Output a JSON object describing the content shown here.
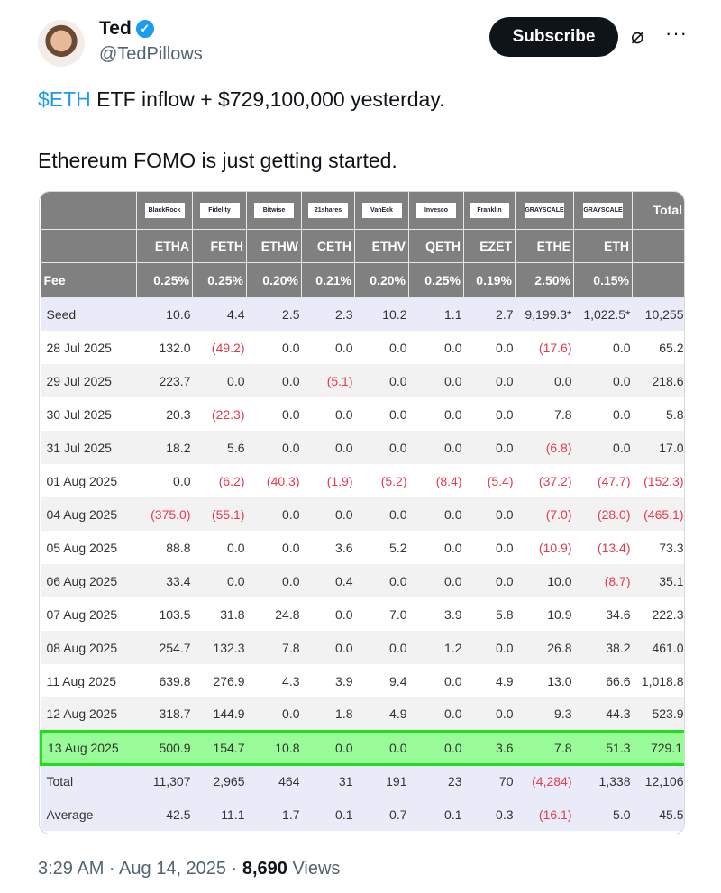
{
  "author": {
    "name": "Ted",
    "handle": "@TedPillows",
    "verified": true
  },
  "actions": {
    "subscribe": "Subscribe",
    "grok_icon": "grok-icon",
    "more_icon": "more-icon"
  },
  "tweet": {
    "cashtag": "$ETH",
    "line1_rest": " ETF inflow + $729,100,000 yesterday.",
    "line2": "Ethereum FOMO is just getting started."
  },
  "table": {
    "issuers": [
      "BlackRock",
      "Fidelity",
      "Bitwise",
      "21shares",
      "VanEck",
      "Invesco",
      "Franklin Templeton",
      "GRAYSCALE",
      "GRAYSCALE"
    ],
    "total_label": "Total",
    "tickers": [
      "ETHA",
      "FETH",
      "ETHW",
      "CETH",
      "ETHV",
      "QETH",
      "EZET",
      "ETHE",
      "ETH"
    ],
    "fee_label": "Fee",
    "fees": [
      "0.25%",
      "0.25%",
      "0.20%",
      "0.21%",
      "0.20%",
      "0.25%",
      "0.19%",
      "2.50%",
      "0.15%"
    ],
    "rows": [
      {
        "label": "Seed",
        "values": [
          "10.6",
          "4.4",
          "2.5",
          "2.3",
          "10.2",
          "1.1",
          "2.7",
          "9,199.3*",
          "1,022.5*",
          "10,255"
        ]
      },
      {
        "label": "28 Jul 2025",
        "values": [
          "132.0",
          "(49.2)",
          "0.0",
          "0.0",
          "0.0",
          "0.0",
          "0.0",
          "(17.6)",
          "0.0",
          "65.2"
        ]
      },
      {
        "label": "29 Jul 2025",
        "values": [
          "223.7",
          "0.0",
          "0.0",
          "(5.1)",
          "0.0",
          "0.0",
          "0.0",
          "0.0",
          "0.0",
          "218.6"
        ]
      },
      {
        "label": "30 Jul 2025",
        "values": [
          "20.3",
          "(22.3)",
          "0.0",
          "0.0",
          "0.0",
          "0.0",
          "0.0",
          "7.8",
          "0.0",
          "5.8"
        ]
      },
      {
        "label": "31 Jul 2025",
        "values": [
          "18.2",
          "5.6",
          "0.0",
          "0.0",
          "0.0",
          "0.0",
          "0.0",
          "(6.8)",
          "0.0",
          "17.0"
        ]
      },
      {
        "label": "01 Aug 2025",
        "values": [
          "0.0",
          "(6.2)",
          "(40.3)",
          "(1.9)",
          "(5.2)",
          "(8.4)",
          "(5.4)",
          "(37.2)",
          "(47.7)",
          "(152.3)"
        ]
      },
      {
        "label": "04 Aug 2025",
        "values": [
          "(375.0)",
          "(55.1)",
          "0.0",
          "0.0",
          "0.0",
          "0.0",
          "0.0",
          "(7.0)",
          "(28.0)",
          "(465.1)"
        ]
      },
      {
        "label": "05 Aug 2025",
        "values": [
          "88.8",
          "0.0",
          "0.0",
          "3.6",
          "5.2",
          "0.0",
          "0.0",
          "(10.9)",
          "(13.4)",
          "73.3"
        ]
      },
      {
        "label": "06 Aug 2025",
        "values": [
          "33.4",
          "0.0",
          "0.0",
          "0.4",
          "0.0",
          "0.0",
          "0.0",
          "10.0",
          "(8.7)",
          "35.1"
        ]
      },
      {
        "label": "07 Aug 2025",
        "values": [
          "103.5",
          "31.8",
          "24.8",
          "0.0",
          "7.0",
          "3.9",
          "5.8",
          "10.9",
          "34.6",
          "222.3"
        ]
      },
      {
        "label": "08 Aug 2025",
        "values": [
          "254.7",
          "132.3",
          "7.8",
          "0.0",
          "0.0",
          "1.2",
          "0.0",
          "26.8",
          "38.2",
          "461.0"
        ]
      },
      {
        "label": "11 Aug 2025",
        "values": [
          "639.8",
          "276.9",
          "4.3",
          "3.9",
          "9.4",
          "0.0",
          "4.9",
          "13.0",
          "66.6",
          "1,018.8"
        ]
      },
      {
        "label": "12 Aug 2025",
        "values": [
          "318.7",
          "144.9",
          "0.0",
          "1.8",
          "4.9",
          "0.0",
          "0.0",
          "9.3",
          "44.3",
          "523.9"
        ]
      },
      {
        "label": "13 Aug 2025",
        "values": [
          "500.9",
          "154.7",
          "10.8",
          "0.0",
          "0.0",
          "0.0",
          "3.6",
          "7.8",
          "51.3",
          "729.1"
        ],
        "highlighted": true
      },
      {
        "label": "Total",
        "values": [
          "11,307",
          "2,965",
          "464",
          "31",
          "191",
          "23",
          "70",
          "(4,284)",
          "1,338",
          "12,106"
        ]
      },
      {
        "label": "Average",
        "values": [
          "42.5",
          "11.1",
          "1.7",
          "0.1",
          "0.7",
          "0.1",
          "0.3",
          "(16.1)",
          "5.0",
          "45.5"
        ]
      }
    ],
    "colors": {
      "header": "#808080",
      "negative": "#e23b4e",
      "highlight": "#98fb98",
      "highlight_border": "#22dd22"
    }
  },
  "footer": {
    "time": "3:29 AM · Aug 14, 2025 · ",
    "views_count": "8,690",
    "views_label": " Views"
  }
}
